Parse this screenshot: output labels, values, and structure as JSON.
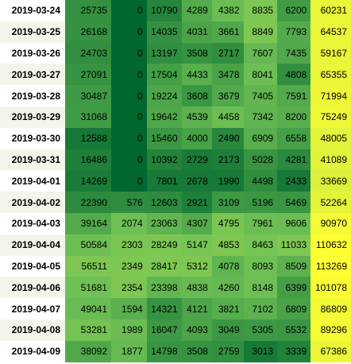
{
  "chart_data": {
    "type": "heatmap",
    "title": "",
    "xlabel": "",
    "ylabel": "",
    "colormap": "yellow-green (low = dark green, high = yellow)",
    "color_scale": {
      "low": "#00672f",
      "mid": "#6fc155",
      "high": "#ffff33"
    },
    "stripe_colors": {
      "odd": "#ffffff",
      "even": "#f2f6ea"
    },
    "rows": [
      "2019-03-24",
      "2019-03-25",
      "2019-03-26",
      "2019-03-27",
      "2019-03-28",
      "2019-03-29",
      "2019-03-30",
      "2019-03-31",
      "2019-04-01",
      "2019-04-02",
      "2019-04-03",
      "2019-04-04",
      "2019-04-05",
      "2019-04-06",
      "2019-04-07",
      "2019-04-08",
      "2019-04-09"
    ],
    "values": [
      [
        25735,
        0,
        10790,
        4289,
        4382,
        8835,
        6200,
        60231
      ],
      [
        26168,
        0,
        14035,
        4031,
        3661,
        8849,
        7793,
        64537
      ],
      [
        24703,
        0,
        13197,
        3508,
        2717,
        7607,
        7435,
        59167
      ],
      [
        27091,
        0,
        17504,
        4433,
        3478,
        8041,
        4808,
        65355
      ],
      [
        30487,
        0,
        19224,
        3608,
        3679,
        7405,
        7591,
        71994
      ],
      [
        31068,
        0,
        19642,
        4539,
        4458,
        7342,
        8200,
        75249
      ],
      [
        12588,
        0,
        15460,
        4000,
        2490,
        6909,
        6558,
        48005
      ],
      [
        16486,
        0,
        10392,
        2729,
        2173,
        5028,
        4281,
        41089
      ],
      [
        14269,
        0,
        7801,
        2678,
        1990,
        4498,
        2433,
        33669
      ],
      [
        22390,
        576,
        12603,
        2921,
        3109,
        5196,
        5469,
        52264
      ],
      [
        39164,
        2074,
        23063,
        4307,
        4795,
        7961,
        9606,
        90970
      ],
      [
        50584,
        2303,
        28249,
        5147,
        4853,
        8463,
        11033,
        110632
      ],
      [
        56511,
        2349,
        28417,
        5312,
        4078,
        8093,
        8509,
        113269
      ],
      [
        51681,
        2354,
        23398,
        4838,
        4260,
        8148,
        6399,
        101078
      ],
      [
        49041,
        1594,
        14321,
        4121,
        3821,
        7102,
        6809,
        86809
      ],
      [
        53281,
        1989,
        16047,
        4093,
        3049,
        5305,
        5532,
        89296
      ],
      [
        38092,
        1877,
        14798,
        3508,
        2759,
        3013,
        3339,
        67386
      ]
    ]
  }
}
